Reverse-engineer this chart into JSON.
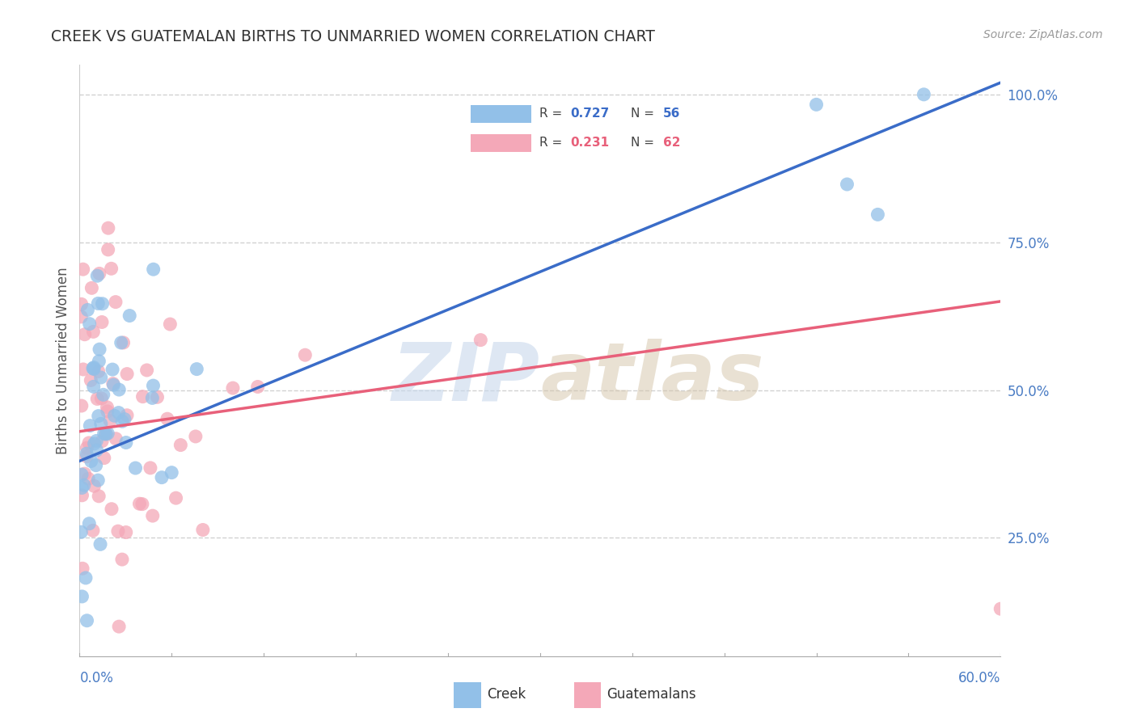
{
  "title": "CREEK VS GUATEMALAN BIRTHS TO UNMARRIED WOMEN CORRELATION CHART",
  "source": "Source: ZipAtlas.com",
  "ylabel": "Births to Unmarried Women",
  "xlim": [
    0.0,
    60.0
  ],
  "ylim": [
    5.0,
    105.0
  ],
  "yticks": [
    25,
    50,
    75,
    100
  ],
  "ytick_labels": [
    "25.0%",
    "50.0%",
    "75.0%",
    "100.0%"
  ],
  "creek_R": 0.727,
  "creek_N": 56,
  "guatemalan_R": 0.231,
  "guatemalan_N": 62,
  "creek_color": "#92C0E8",
  "guatemalan_color": "#F4A8B8",
  "creek_line_color": "#3A6CC8",
  "guatemalan_line_color": "#E8607A",
  "background_color": "#FFFFFF",
  "title_color": "#333333",
  "axis_label_color": "#4A7CC4",
  "watermark_color": "#C8D8EC",
  "creek_line_y0": 38,
  "creek_line_y1": 102,
  "guatemalan_line_y0": 43,
  "guatemalan_line_y1": 65
}
